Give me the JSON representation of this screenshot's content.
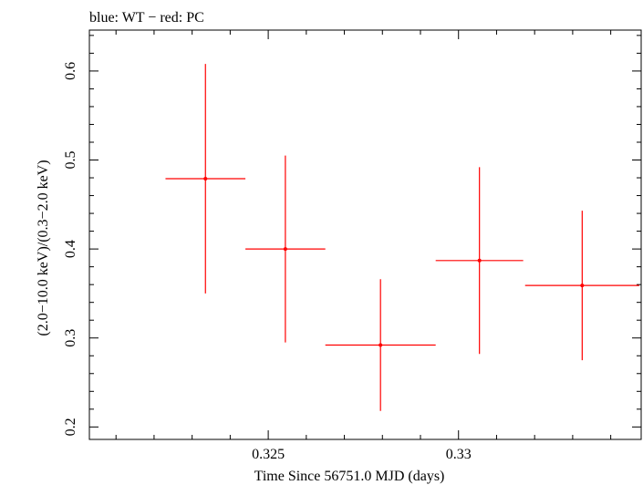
{
  "chart_data": {
    "type": "scatter",
    "title": "blue: WT − red: PC",
    "xlabel": "Time Since 56751.0 MJD (days)",
    "ylabel": "(2.0−10.0 keV)/(0.3−2.0 keV)",
    "xlim": [
      0.3203,
      0.3348
    ],
    "ylim": [
      0.186,
      0.646
    ],
    "x_ticks": [
      {
        "value": 0.325,
        "label": "0.325"
      },
      {
        "value": 0.33,
        "label": "0.33"
      }
    ],
    "y_ticks": [
      {
        "value": 0.2,
        "label": "0.2"
      },
      {
        "value": 0.3,
        "label": "0.3"
      },
      {
        "value": 0.4,
        "label": "0.4"
      },
      {
        "value": 0.5,
        "label": "0.5"
      },
      {
        "value": 0.6,
        "label": "0.6"
      }
    ],
    "x_minor_step": 0.001,
    "y_minor_step": 0.02,
    "grid": false,
    "series": [
      {
        "color": "#ff0000",
        "points": [
          {
            "x": 0.32335,
            "y": 0.479,
            "xerr_lo": 0.00105,
            "xerr_hi": 0.00105,
            "yerr_lo": 0.129,
            "yerr_hi": 0.129
          },
          {
            "x": 0.32545,
            "y": 0.4,
            "xerr_lo": 0.00105,
            "xerr_hi": 0.00105,
            "yerr_lo": 0.105,
            "yerr_hi": 0.105
          },
          {
            "x": 0.32795,
            "y": 0.292,
            "xerr_lo": 0.00145,
            "xerr_hi": 0.00145,
            "yerr_lo": 0.074,
            "yerr_hi": 0.074
          },
          {
            "x": 0.33055,
            "y": 0.387,
            "xerr_lo": 0.00115,
            "xerr_hi": 0.00115,
            "yerr_lo": 0.105,
            "yerr_hi": 0.105
          },
          {
            "x": 0.33325,
            "y": 0.359,
            "xerr_lo": 0.0015,
            "xerr_hi": 0.0015,
            "yerr_lo": 0.084,
            "yerr_hi": 0.084
          }
        ]
      }
    ]
  }
}
